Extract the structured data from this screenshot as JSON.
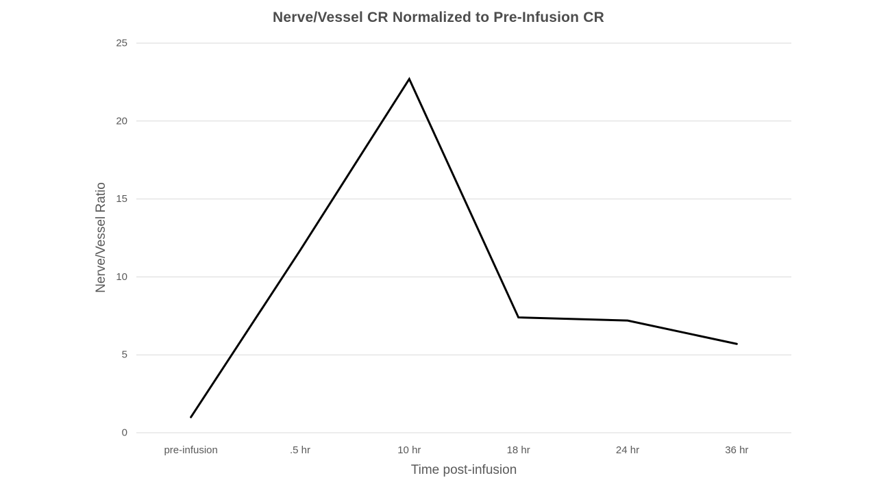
{
  "chart_data": {
    "type": "line",
    "title": "Nerve/Vessel CR Normalized to Pre-Infusion CR",
    "xlabel": "Time post-infusion",
    "ylabel": "Nerve/Vessel Ratio",
    "categories": [
      "pre-infusion",
      ".5 hr",
      "10 hr",
      "18 hr",
      "24 hr",
      "36 hr"
    ],
    "series": [
      {
        "name": "Nerve/Vessel CR normalized",
        "values": [
          1.0,
          11.7,
          22.7,
          7.4,
          7.2,
          5.7
        ]
      }
    ],
    "ylim": [
      0,
      25
    ],
    "yticks": [
      0,
      5,
      10,
      15,
      20,
      25
    ],
    "grid": "horizontal",
    "legend": "none",
    "colors": {
      "line": "#000000",
      "gridline": "#d9d9d9",
      "axis_line": "#d9d9d9",
      "tick_text": "#595959",
      "title_text": "#4d4d4d",
      "background": "#ffffff"
    }
  }
}
